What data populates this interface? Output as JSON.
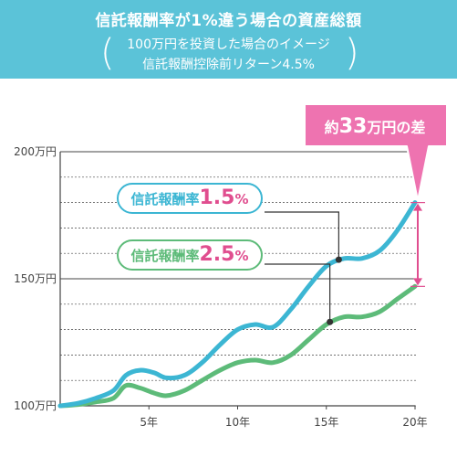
{
  "header": {
    "title": "信託報酬率が1%違う場合の資産総額",
    "line1": "100万円を投資した場合のイメージ",
    "line2": "信託報酬控除前リターン4.5%",
    "paren_open": "(",
    "paren_close": ")"
  },
  "callout": {
    "prefix": "約",
    "amount": "33",
    "suffix": "万円の差"
  },
  "labels": {
    "blue": {
      "text": "信託報酬率",
      "num": "1.5",
      "pct": "%"
    },
    "green": {
      "text": "信託報酬率",
      "num": "2.5",
      "pct": "%"
    }
  },
  "colors": {
    "banner": "#5bc3d8",
    "blue_line": "#3cb6d3",
    "green_line": "#5dbb79",
    "callout": "#ee73b0",
    "grid": "#444444",
    "pink_arrow": "#e04e8f"
  },
  "chart_data": {
    "type": "line",
    "title": "信託報酬率が1%違う場合の資産総額",
    "x_ticks": [
      5,
      10,
      15,
      20
    ],
    "x_tick_labels": [
      "5年",
      "10年",
      "15年",
      "20年"
    ],
    "y_ticks": [
      100,
      150,
      200
    ],
    "y_tick_labels": [
      "100万円",
      "150万円",
      "200万円"
    ],
    "xlim": [
      0,
      20
    ],
    "ylim": [
      100,
      200
    ],
    "grid": true,
    "series": [
      {
        "name": "信託報酬率1.5%",
        "color": "#3cb6d3",
        "x": [
          0,
          1,
          2,
          3,
          3.7,
          4.5,
          5.3,
          6,
          7,
          8,
          9,
          10,
          11,
          12,
          13,
          14,
          15,
          16,
          17,
          18,
          19,
          20
        ],
        "values": [
          100,
          101,
          103,
          106,
          112,
          114,
          113,
          111,
          112,
          117,
          124,
          130,
          132,
          131,
          138,
          147,
          155,
          158,
          158,
          161,
          169,
          180
        ]
      },
      {
        "name": "信託報酬率2.5%",
        "color": "#5dbb79",
        "x": [
          0,
          1,
          2,
          3,
          3.7,
          4.5,
          5.3,
          6,
          7,
          8,
          9,
          10,
          11,
          12,
          13,
          14,
          15,
          16,
          17,
          18,
          19,
          20
        ],
        "values": [
          100,
          100.5,
          101.5,
          103,
          108,
          107,
          105,
          104,
          106,
          110,
          114,
          117,
          118,
          117,
          120,
          126,
          132,
          135,
          135,
          137,
          142,
          147
        ]
      }
    ],
    "annotation": "約33万円の差"
  }
}
